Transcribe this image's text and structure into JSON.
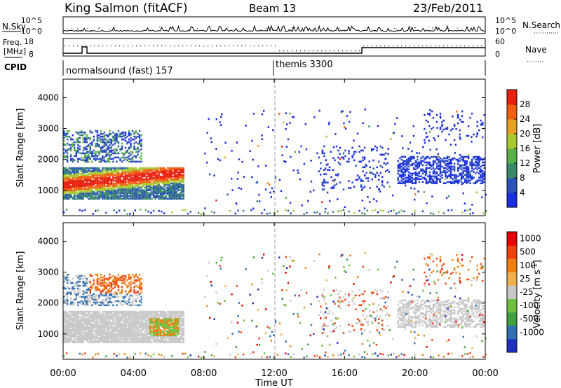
{
  "header": {
    "station": "King Salmon (fitACF)",
    "beam": "Beam 13",
    "date": "23/Feb/2011"
  },
  "status_panel": {
    "nsky_label": "N.Sky",
    "nsearch_label": "N.Search",
    "noise_ticks": [
      "10^5",
      "10^0"
    ],
    "freq_label_1": "Freq.",
    "freq_label_2": "[MHz]",
    "freq_ticks": [
      "18",
      "8"
    ],
    "nave_label": "Nave",
    "nave_ticks": [
      "60",
      "0"
    ],
    "cpid_label": "CPID",
    "cpid_1": "normalsound (fast) 157",
    "cpid_2": "themis 3300"
  },
  "colors": {
    "power": [
      "#1a2ee0",
      "#2a52b8",
      "#3a8a6a",
      "#58b04a",
      "#a8c830",
      "#e8a020",
      "#f06010",
      "#e82010"
    ],
    "velocity": [
      "#e80000",
      "#f04010",
      "#f08010",
      "#f0b050",
      "#c8c8c8",
      "#70c040",
      "#40a040",
      "#3070b0",
      "#2030c0"
    ]
  },
  "chart_data": [
    {
      "type": "heatmap",
      "title": "Power",
      "ylabel": "Slant Range [km]",
      "yticks": [
        "4000",
        "3000",
        "2000",
        "1000"
      ],
      "ylim": [
        180,
        4600
      ],
      "xlim": [
        0,
        24
      ],
      "colorbar_label": "Power [dB]",
      "colorbar_ticks": [
        "28",
        "24",
        "20",
        "16",
        "12",
        "8",
        "4"
      ],
      "colorbar_range": [
        0,
        32
      ]
    },
    {
      "type": "heatmap",
      "title": "Velocity",
      "ylabel": "Slant Range [km]",
      "yticks": [
        "4000",
        "3000",
        "2000",
        "1000"
      ],
      "ylim": [
        180,
        4600
      ],
      "xlim": [
        0,
        24
      ],
      "xlabel": "Time UT",
      "xticks": [
        "00:00",
        "04:00",
        "08:00",
        "12:00",
        "16:00",
        "20:00",
        "00:00"
      ],
      "colorbar_label": "Velocity [m s",
      "colorbar_label_sup": "-1",
      "colorbar_label_end": "]",
      "colorbar_ticks": [
        "1000",
        "500",
        "100",
        "25",
        "-25",
        "-100",
        "-500",
        "-1000"
      ]
    }
  ]
}
